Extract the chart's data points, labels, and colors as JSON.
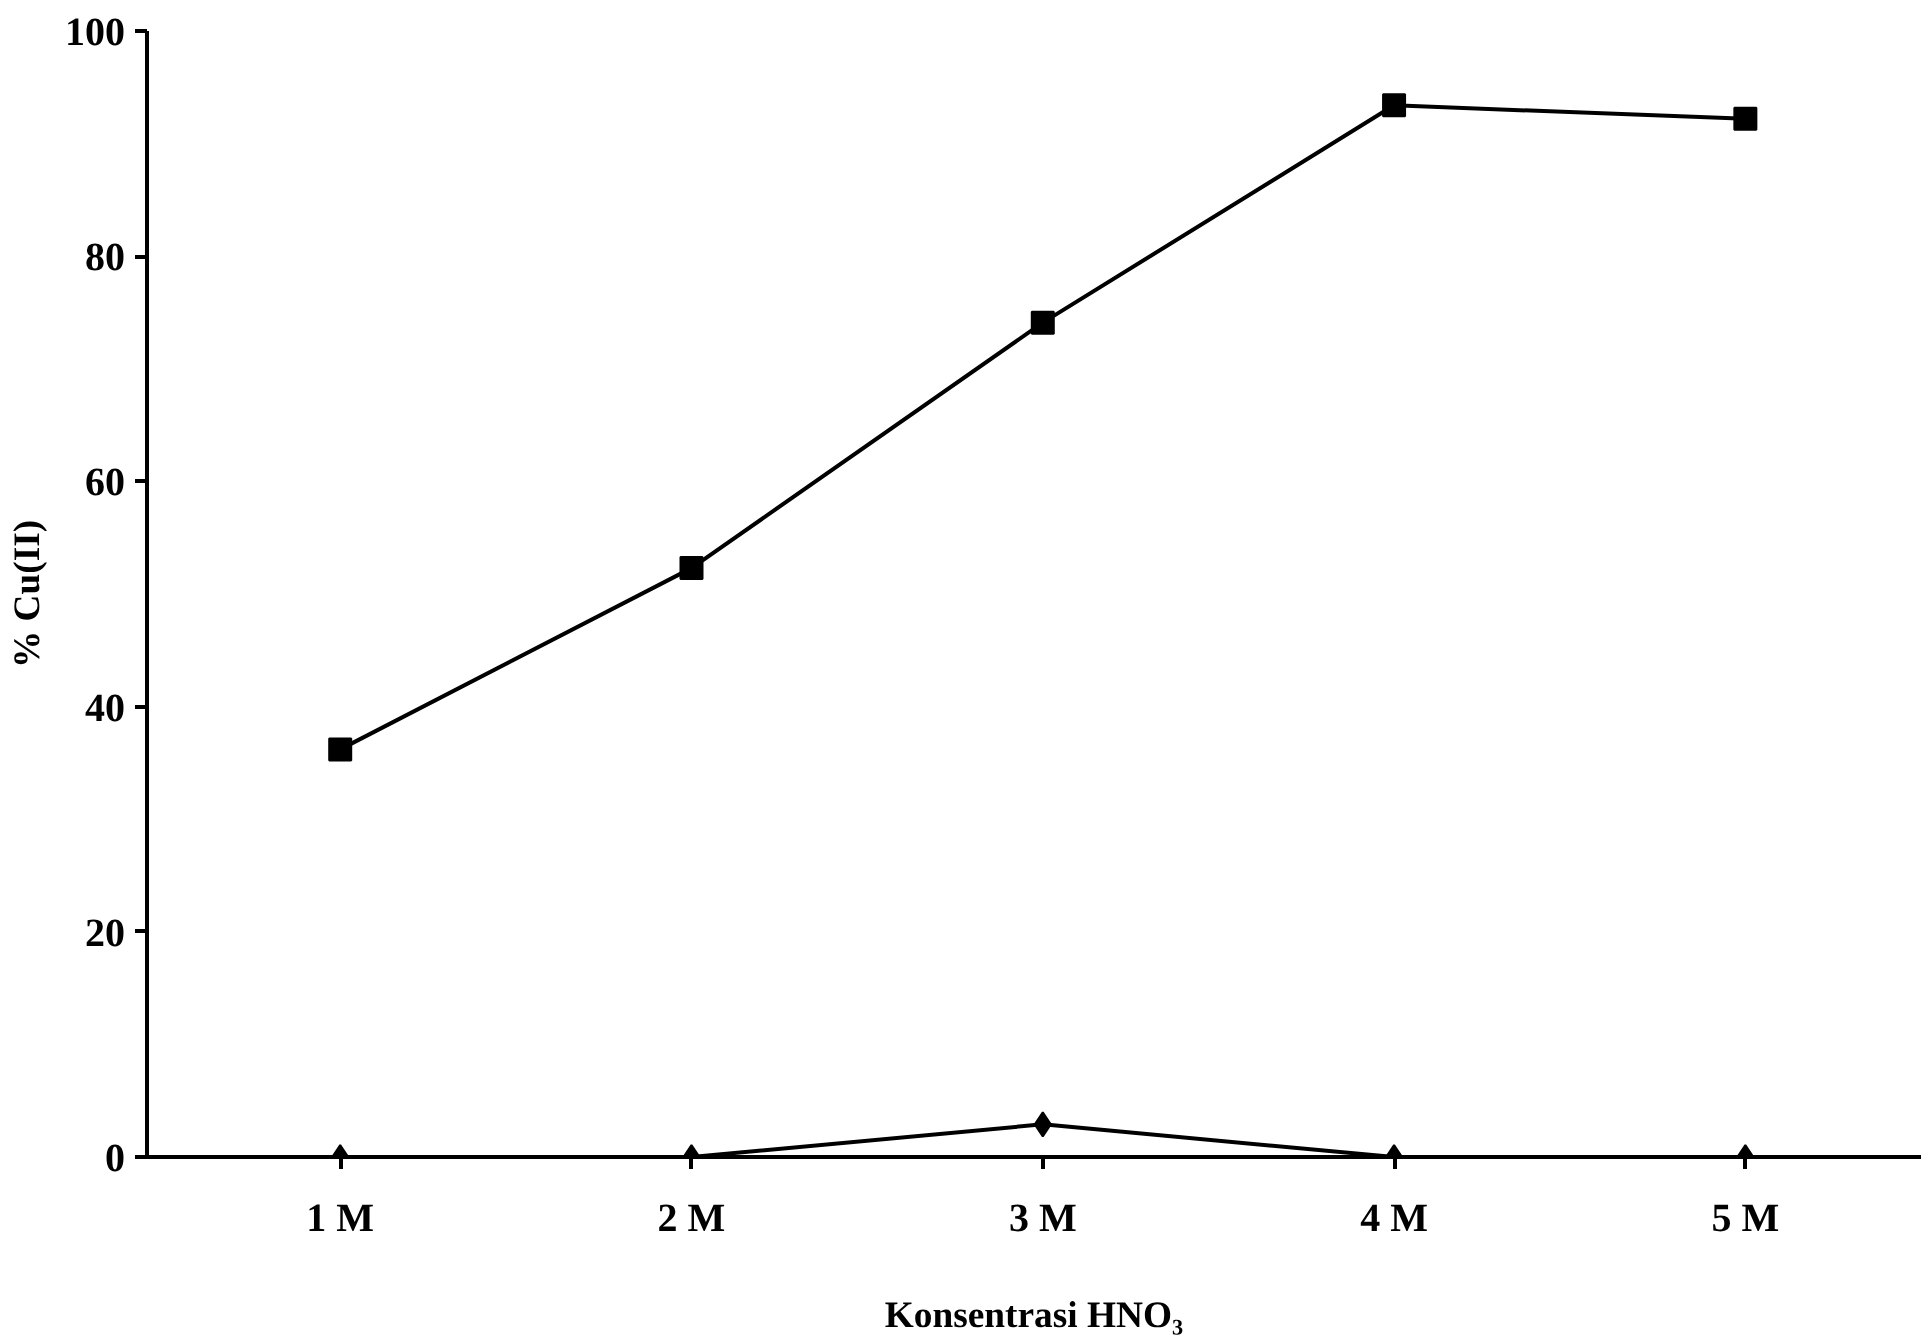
{
  "chart_data": {
    "type": "line",
    "xlabel": "Konsentrasi HNO₃",
    "ylabel": "% Cu(II)",
    "categories": [
      "1 M",
      "2 M",
      "3 M",
      "4 M",
      "5 M"
    ],
    "series": [
      {
        "color": "#000000",
        "values": [
          36.2,
          52.3,
          74.1,
          93.4,
          92.2
        ],
        "marker": "square"
      },
      {
        "color": "#000000",
        "values": [
          0,
          0,
          2.9,
          0,
          0
        ],
        "marker": "diamond"
      }
    ],
    "ylim": [
      0,
      100
    ],
    "yticks": [
      0,
      20,
      40,
      60,
      80,
      100
    ],
    "grid": false,
    "line_style": "solid"
  }
}
